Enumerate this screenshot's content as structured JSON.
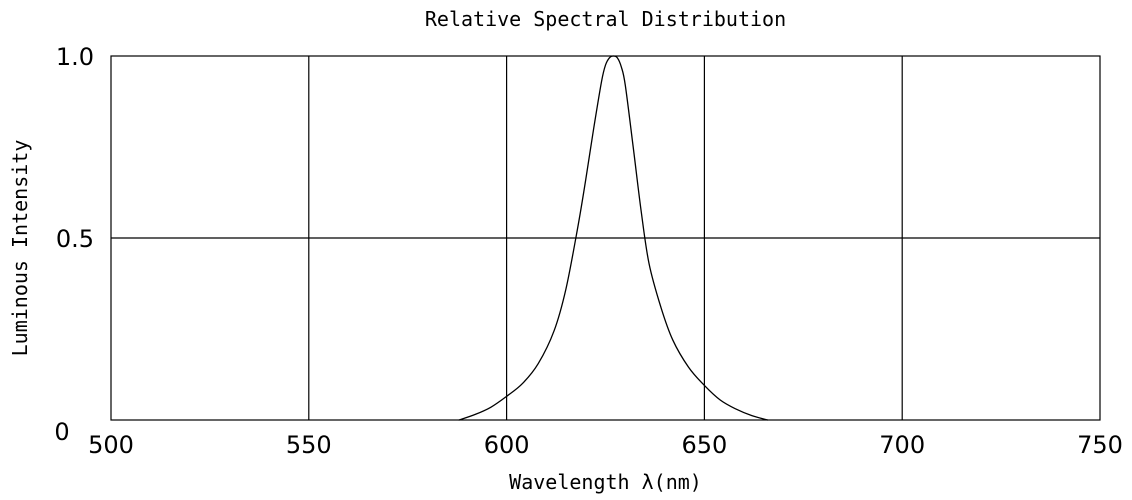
{
  "chart_data": {
    "type": "line",
    "title": "Relative Spectral Distribution",
    "xlabel": "Wavelength λ(nm)",
    "ylabel": "Luminous Intensity",
    "xlim": [
      500,
      750
    ],
    "ylim": [
      0,
      1.0
    ],
    "x_ticks": [
      500,
      550,
      600,
      650,
      700,
      750
    ],
    "x_tick_labels": [
      "500",
      "550",
      "600",
      "650",
      "700",
      "750"
    ],
    "y_ticks": [
      0,
      0.5,
      1.0
    ],
    "y_tick_labels": [
      "0",
      "0.5",
      "1.0"
    ],
    "grid": true,
    "line_color": "#000000",
    "series": [
      {
        "x": [
          588,
          592,
          596,
          600,
          604,
          608,
          612,
          615,
          618,
          620,
          622,
          624,
          625,
          626,
          627,
          628,
          629,
          630,
          632,
          634,
          636,
          639,
          642,
          646,
          650,
          654,
          658,
          662,
          666
        ],
        "y": [
          0,
          0.015,
          0.035,
          0.065,
          0.1,
          0.155,
          0.245,
          0.36,
          0.53,
          0.66,
          0.8,
          0.93,
          0.975,
          0.995,
          1.0,
          0.995,
          0.97,
          0.92,
          0.75,
          0.575,
          0.43,
          0.31,
          0.22,
          0.145,
          0.095,
          0.055,
          0.03,
          0.012,
          0
        ]
      }
    ]
  }
}
